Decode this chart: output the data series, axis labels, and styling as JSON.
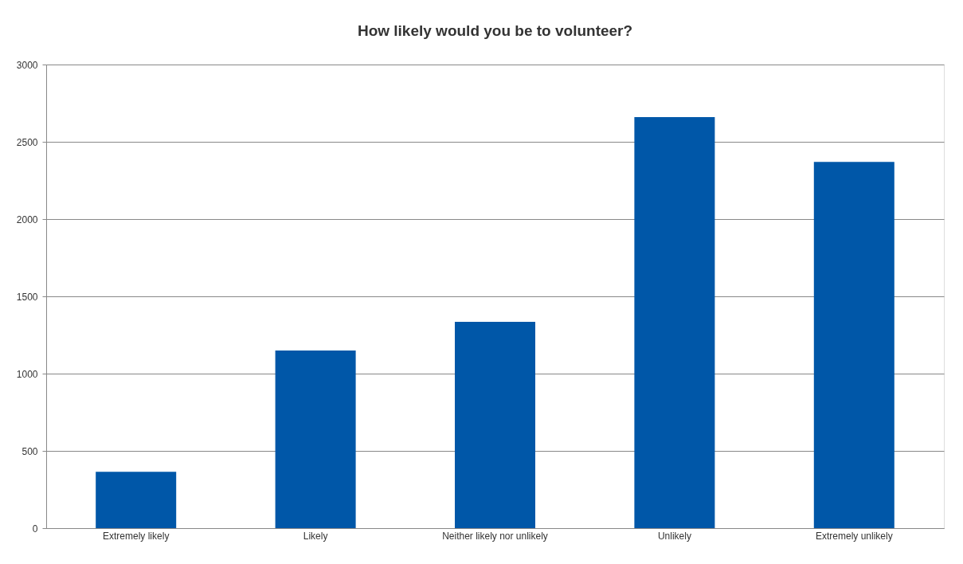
{
  "chart_data": {
    "type": "bar",
    "title": "How likely would you be to volunteer?",
    "categories": [
      "Extremely likely",
      "Likely",
      "Neither likely nor unlikely",
      "Unlikely",
      "Extremely unlikely"
    ],
    "values": [
      365,
      1150,
      1335,
      2660,
      2370
    ],
    "color": "#0057a8",
    "ylim": [
      0,
      3000
    ],
    "yticks": [
      0,
      500,
      1000,
      1500,
      2000,
      2500,
      3000
    ],
    "grid": "y"
  }
}
